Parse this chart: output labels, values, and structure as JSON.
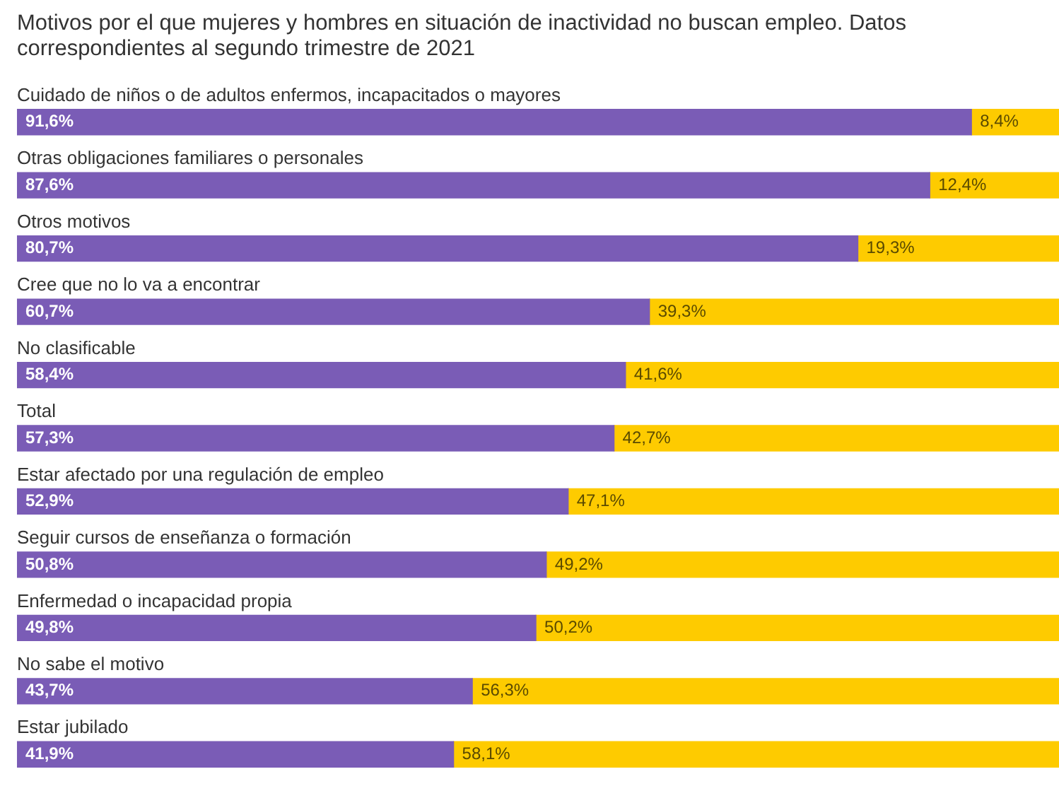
{
  "chart_data": {
    "type": "bar",
    "orientation": "horizontal",
    "stacked": true,
    "title": "Motivos por el que mujeres y hombres en situación de inactividad no buscan empleo. Datos correspondientes al segundo trimestre de 2021",
    "categories": [
      "Cuidado de niños o de adultos enfermos, incapacitados o mayores",
      "Otras obligaciones familiares o personales",
      "Otros motivos",
      "Cree que no lo va a encontrar",
      "No clasificable",
      "Total",
      "Estar afectado por una regulación de empleo",
      "Seguir cursos de enseñanza o formación",
      "Enfermedad o incapacidad propia",
      "No sabe el motivo",
      "Estar jubilado"
    ],
    "series": [
      {
        "color": "#7a5cb6",
        "values": [
          91.6,
          87.6,
          80.7,
          60.7,
          58.4,
          57.3,
          52.9,
          50.8,
          49.8,
          43.7,
          41.9
        ],
        "value_labels": [
          "91,6%",
          "87,6%",
          "80,7%",
          "60,7%",
          "58,4%",
          "57,3%",
          "52,9%",
          "50,8%",
          "49,8%",
          "43,7%",
          "41,9%"
        ]
      },
      {
        "color": "#fecb00",
        "values": [
          8.4,
          12.4,
          19.3,
          39.3,
          41.6,
          42.7,
          47.1,
          49.2,
          50.2,
          56.3,
          58.1
        ],
        "value_labels": [
          "8,4%",
          "12,4%",
          "19,3%",
          "39,3%",
          "41,6%",
          "42,7%",
          "47,1%",
          "49,2%",
          "50,2%",
          "56,3%",
          "58,1%"
        ]
      }
    ],
    "xlim": [
      0,
      100
    ],
    "tick_labels": false,
    "legend": false
  }
}
